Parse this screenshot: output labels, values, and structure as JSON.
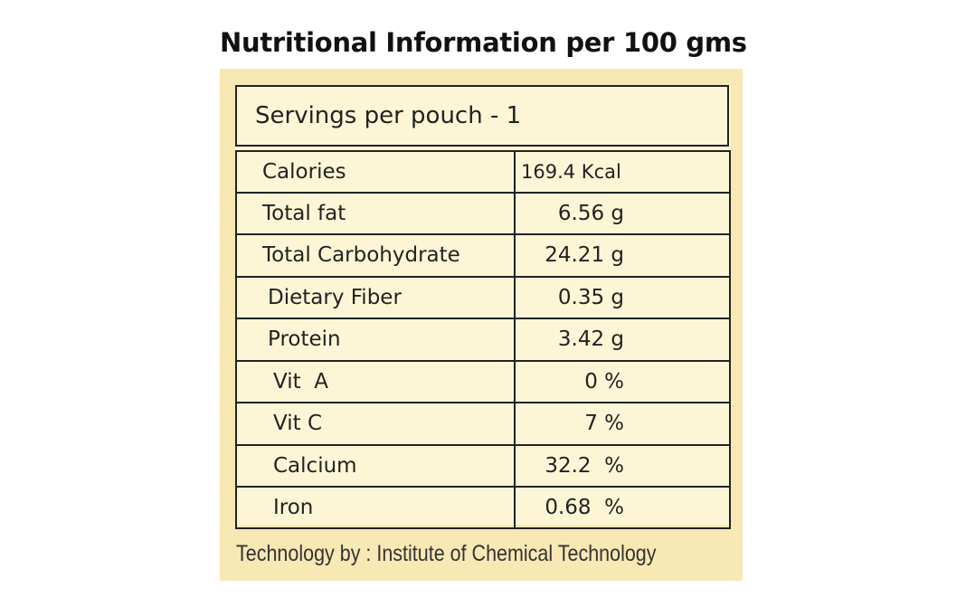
{
  "header": {
    "title": "Nutritional Information per 100 gms"
  },
  "servings": "Servings per pouch - 1",
  "table": {
    "rows": [
      [
        "Calories",
        "169.4 Kcal"
      ],
      [
        "Total fat",
        "6.56 g"
      ],
      [
        "Total Carbohydrate",
        "24.21 g"
      ],
      [
        "Dietary Fiber",
        "0.35 g"
      ],
      [
        "Protein",
        "3.42 g"
      ],
      [
        "Vit  A",
        "0 %"
      ],
      [
        "Vit C",
        "7 %"
      ],
      [
        "Calcium",
        "32.2  %"
      ],
      [
        "Iron",
        "0.68  %"
      ]
    ]
  },
  "footer": "Technology by : Institute of Chemical Technology"
}
